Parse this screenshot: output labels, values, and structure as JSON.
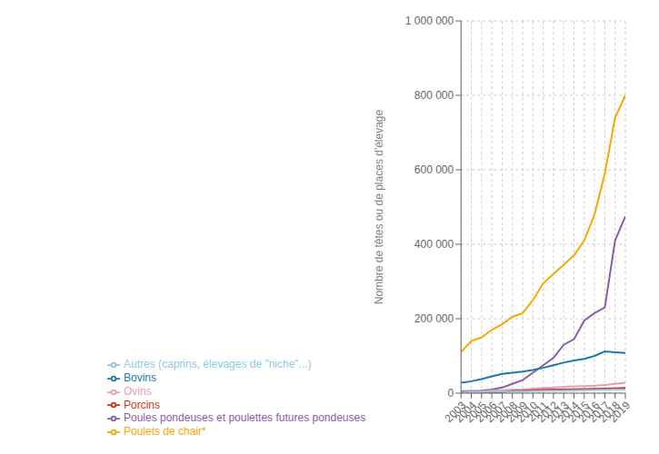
{
  "chart_data": {
    "type": "line",
    "x": [
      2003,
      2004,
      2005,
      2006,
      2007,
      2008,
      2009,
      2010,
      2011,
      2012,
      2013,
      2014,
      2015,
      2016,
      2017,
      2018,
      2019
    ],
    "ylabel": "Nombre de têtes ou de places d'élevage",
    "series": [
      {
        "name": "Poulets de chair*",
        "color": "#F5A800",
        "values": [
          110000,
          140000,
          150000,
          170000,
          185000,
          205000,
          215000,
          250000,
          295000,
          320000,
          345000,
          370000,
          410000,
          480000,
          590000,
          740000,
          800000
        ]
      },
      {
        "name": "Poules pondeuses et poulettes futures pondeuses",
        "color": "#8B5CA8",
        "values": [
          5000,
          6000,
          7000,
          10000,
          15000,
          25000,
          35000,
          55000,
          75000,
          95000,
          130000,
          145000,
          195000,
          215000,
          230000,
          410000,
          475000
        ]
      },
      {
        "name": "Bovins",
        "color": "#1A7BA4",
        "values": [
          28000,
          32000,
          38000,
          45000,
          52000,
          55000,
          58000,
          62000,
          68000,
          75000,
          82000,
          88000,
          92000,
          100000,
          112000,
          110000,
          108000
        ]
      },
      {
        "name": "Ovins",
        "color": "#E8A0B0",
        "values": [
          3000,
          4000,
          5000,
          7000,
          8000,
          9000,
          10000,
          12000,
          14000,
          15000,
          17000,
          18000,
          19000,
          20000,
          22000,
          25000,
          28000
        ]
      },
      {
        "name": "Porcins",
        "color": "#D43020",
        "values": [
          1000,
          1200,
          1400,
          2000,
          3000,
          6000,
          7000,
          8000,
          9000,
          9500,
          10000,
          10500,
          11000,
          11500,
          12000,
          13000,
          14000
        ]
      },
      {
        "name": "Autres (caprins, élevages de \"niche\"...)",
        "color": "#90C8E0",
        "values": [
          2000,
          2500,
          3000,
          3500,
          4000,
          4500,
          5000,
          5500,
          6000,
          6500,
          7000,
          7500,
          8000,
          8500,
          9000,
          9500,
          10000
        ]
      }
    ],
    "xlim": [
      2003,
      2019
    ],
    "xticks": [
      2003,
      2004,
      2005,
      2006,
      2007,
      2008,
      2009,
      2010,
      2011,
      2012,
      2013,
      2014,
      2015,
      2016,
      2017,
      2018,
      2019
    ],
    "ylim": [
      0,
      1000000
    ],
    "yticks": [
      0,
      {
        "value": 200000,
        "label": "200 000"
      },
      {
        "value": 400000,
        "label": "400 000"
      },
      {
        "value": 600000,
        "label": "600 000"
      },
      {
        "value": 800000,
        "label": "800 000"
      },
      {
        "value": 1000000,
        "label": "1 000 000"
      }
    ],
    "grid": true,
    "legend": "bottom"
  }
}
